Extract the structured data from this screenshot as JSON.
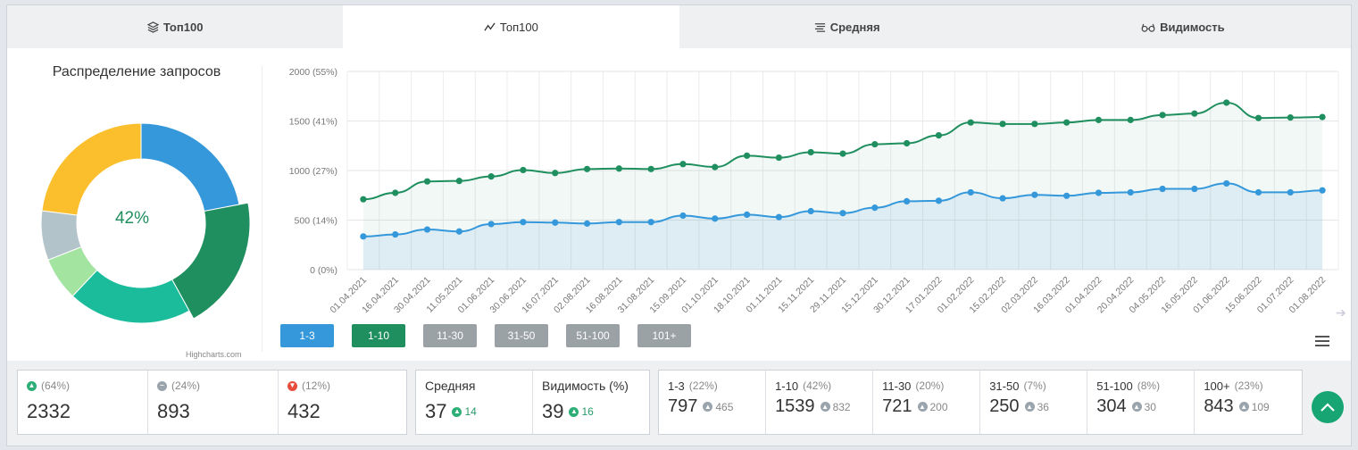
{
  "tabs": [
    {
      "label": "Топ100",
      "icon": "layers-icon"
    },
    {
      "label": "Топ100",
      "icon": "line-chart-icon"
    },
    {
      "label": "Средняя",
      "icon": "bars-icon"
    },
    {
      "label": "Видимость",
      "icon": "glasses-icon"
    }
  ],
  "donut": {
    "title": "Распределение запросов",
    "center_label": "42%",
    "credits": "Highcharts.com",
    "segments": [
      {
        "name": "1-3",
        "pct": 22,
        "color": "#3498db"
      },
      {
        "name": "1-10",
        "pct": 20,
        "color": "#1f8f5f"
      },
      {
        "name": "11-30",
        "pct": 20,
        "color": "#1abc9c"
      },
      {
        "name": "31-50",
        "pct": 7,
        "color": "#a3e4a0"
      },
      {
        "name": "51-100",
        "pct": 8,
        "color": "#b2c4ca"
      },
      {
        "name": "101+",
        "pct": 23,
        "color": "#fbbf2e"
      }
    ]
  },
  "chart_data": {
    "type": "area",
    "x": [
      "01.04.2021",
      "16.04.2021",
      "30.04.2021",
      "11.05.2021",
      "01.06.2021",
      "30.06.2021",
      "16.07.2021",
      "02.08.2021",
      "16.08.2021",
      "31.08.2021",
      "15.09.2021",
      "01.10.2021",
      "18.10.2021",
      "01.11.2021",
      "15.11.2021",
      "29.11.2021",
      "15.12.2021",
      "30.12.2021",
      "17.01.2022",
      "01.02.2022",
      "15.02.2022",
      "02.03.2022",
      "16.03.2022",
      "01.04.2022",
      "20.04.2022",
      "04.05.2022",
      "16.05.2022",
      "01.06.2022",
      "15.06.2022",
      "01.07.2022",
      "01.08.2022"
    ],
    "yticks": [
      "0 (0%)",
      "500 (14%)",
      "1000 (27%)",
      "1500 (41%)",
      "2000 (55%)"
    ],
    "ylim": [
      0,
      2000
    ],
    "grid": true,
    "series": [
      {
        "name": "1-10",
        "color": "#1f8f5f",
        "values": [
          710,
          775,
          890,
          895,
          940,
          1005,
          975,
          1015,
          1020,
          1015,
          1065,
          1035,
          1150,
          1130,
          1185,
          1170,
          1265,
          1275,
          1355,
          1485,
          1470,
          1470,
          1485,
          1510,
          1510,
          1560,
          1575,
          1685,
          1530,
          1535,
          1540
        ]
      },
      {
        "name": "1-3",
        "color": "#3498db",
        "values": [
          335,
          355,
          405,
          385,
          460,
          480,
          475,
          465,
          480,
          480,
          545,
          515,
          555,
          530,
          590,
          570,
          625,
          690,
          695,
          780,
          720,
          755,
          745,
          775,
          780,
          815,
          815,
          870,
          780,
          780,
          800
        ]
      }
    ]
  },
  "legend_buttons": [
    {
      "label": "1-3",
      "color": "#3498db"
    },
    {
      "label": "1-10",
      "color": "#1f8f5f"
    },
    {
      "label": "11-30",
      "color": "#9aa2a6"
    },
    {
      "label": "31-50",
      "color": "#9aa2a6"
    },
    {
      "label": "51-100",
      "color": "#9aa2a6"
    },
    {
      "label": "101+",
      "color": "#9aa2a6"
    }
  ],
  "stats": {
    "up": {
      "pct": "(64%)",
      "value": "2332"
    },
    "same": {
      "pct": "(24%)",
      "value": "893"
    },
    "down": {
      "pct": "(12%)",
      "value": "432"
    },
    "avg": {
      "title": "Средняя",
      "value": "37",
      "delta": "14"
    },
    "vis": {
      "title": "Видимость (%)",
      "value": "39",
      "delta": "16"
    }
  },
  "groups": [
    {
      "label": "1-3",
      "pct": "(22%)",
      "value": "797",
      "delta": "465"
    },
    {
      "label": "1-10",
      "pct": "(42%)",
      "value": "1539",
      "delta": "832"
    },
    {
      "label": "11-30",
      "pct": "(20%)",
      "value": "721",
      "delta": "200"
    },
    {
      "label": "31-50",
      "pct": "(7%)",
      "value": "250",
      "delta": "36"
    },
    {
      "label": "51-100",
      "pct": "(8%)",
      "value": "304",
      "delta": "30"
    },
    {
      "label": "100+",
      "pct": "(23%)",
      "value": "843",
      "delta": "109"
    }
  ]
}
